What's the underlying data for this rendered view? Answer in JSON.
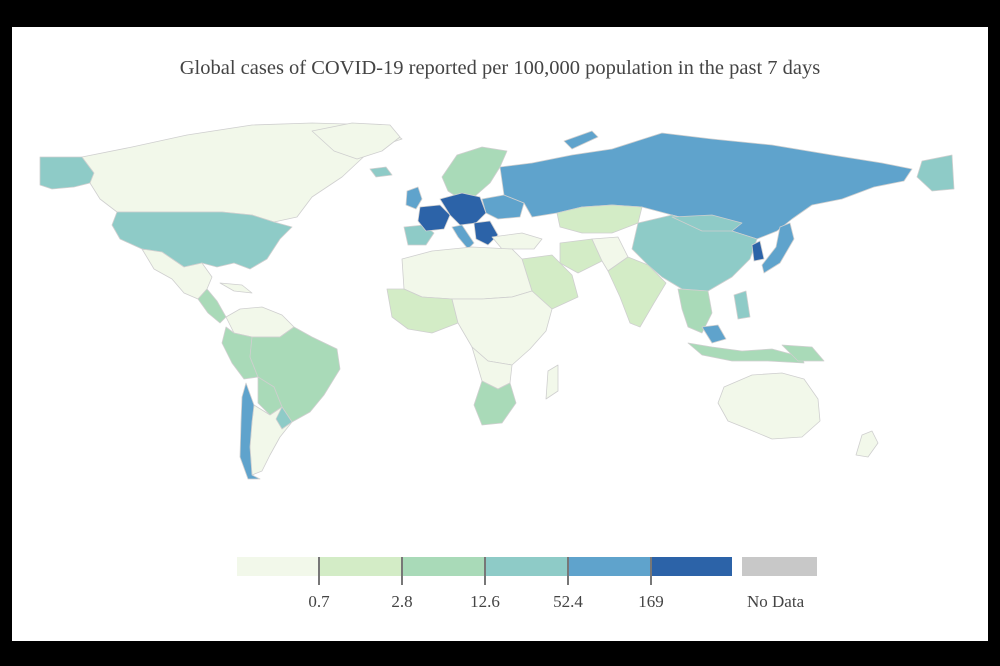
{
  "title": "Global cases of COVID-19 reported per 100,000 population in the past 7 days",
  "legend": {
    "thresholds": [
      "0.7",
      "2.8",
      "12.6",
      "52.4",
      "169"
    ],
    "colors": [
      "#f2f8ea",
      "#d3ecc6",
      "#a9dab8",
      "#8ecbc7",
      "#5fa3cc",
      "#2c63a8"
    ],
    "no_data_label": "No Data",
    "no_data_color": "#c8c8c8"
  },
  "colors": {
    "background": "#000000",
    "panel": "#ffffff",
    "border": "#cfcfcf"
  }
}
